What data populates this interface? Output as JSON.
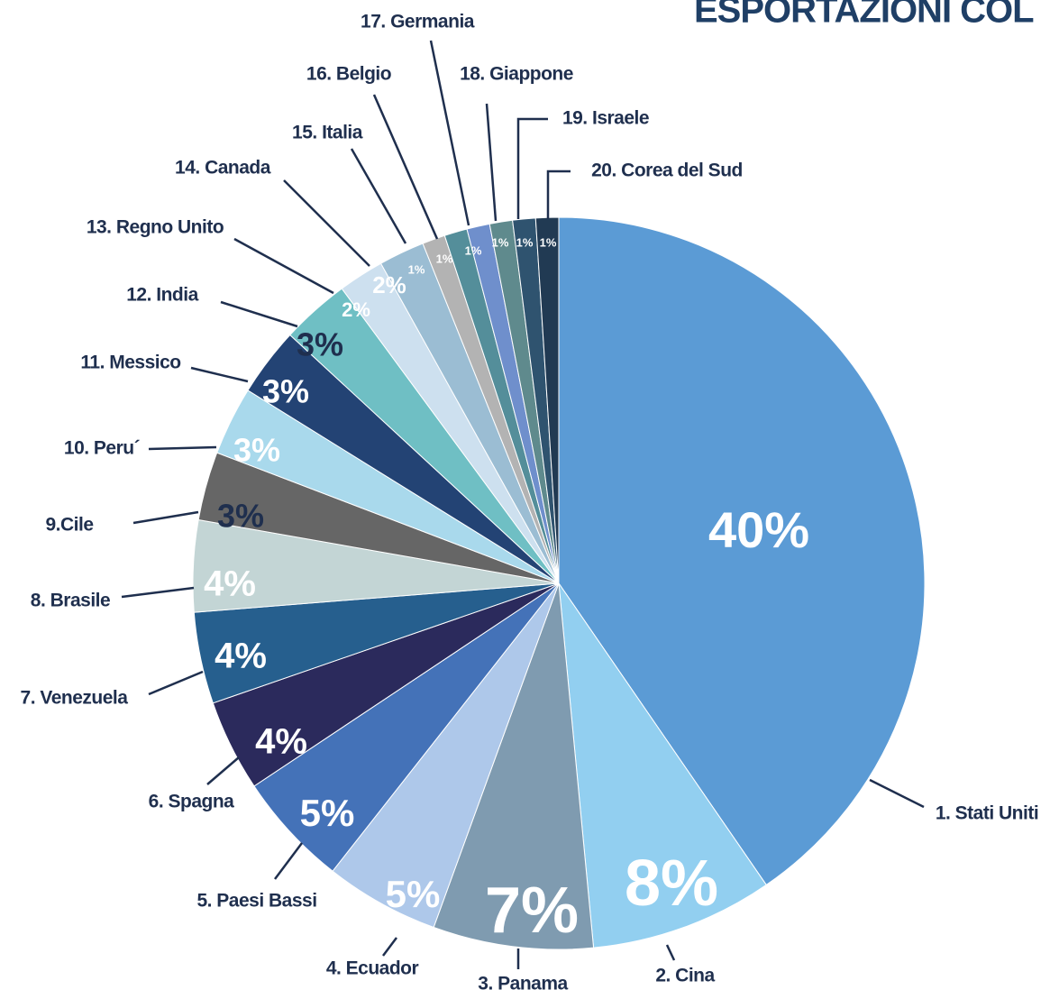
{
  "chart_data": {
    "type": "pie",
    "title": "ESPORTAZIONI COL",
    "categories": [
      "1. Stati Uniti",
      "2. Cina",
      "3. Panama",
      "4. Ecuador",
      "5. Paesi Bassi",
      "6. Spagna",
      "7. Venezuela",
      "8. Brasile",
      "9.Cile",
      "10. Peru´",
      "11. Messico",
      "12. India",
      "13. Regno Unito",
      "14. Canada",
      "15. Italia",
      "16. Belgio",
      "17. Germania",
      "18. Giappone",
      "19. Israele",
      "20. Corea del Sud"
    ],
    "values": [
      40,
      8,
      7,
      5,
      5,
      4,
      4,
      4,
      3,
      3,
      3,
      3,
      2,
      2,
      1,
      1,
      1,
      1,
      1,
      1
    ],
    "value_labels": [
      "40%",
      "8%",
      "7%",
      "5%",
      "5%",
      "4%",
      "4%",
      "4%",
      "3%",
      "3%",
      "3%",
      "3%",
      "2%",
      "2%",
      "1%",
      "1%",
      "1%",
      "1%",
      "1%",
      "1%"
    ],
    "colors": [
      "#5b9bd5",
      "#92cff0",
      "#7f9bb0",
      "#aec8ea",
      "#4472b8",
      "#2b2a5c",
      "#265f8e",
      "#c3d5d5",
      "#666666",
      "#a9d9ec",
      "#234374",
      "#6fbfc4",
      "#cde0ef",
      "#9bbdd3",
      "#b3b3b3",
      "#548e9a",
      "#6f8fcc",
      "#5f8a8d",
      "#2f536f",
      "#213a53"
    ],
    "label_colors": [
      "#ffffff",
      "#ffffff",
      "#ffffff",
      "#ffffff",
      "#ffffff",
      "#ffffff",
      "#ffffff",
      "#ffffff",
      "#1f2f4e",
      "#ffffff",
      "#ffffff",
      "#1f2f4e",
      "#ffffff",
      "#ffffff",
      "#ffffff",
      "#ffffff",
      "#ffffff",
      "#ffffff",
      "#ffffff",
      "#ffffff"
    ]
  }
}
